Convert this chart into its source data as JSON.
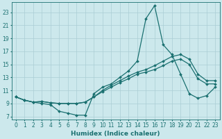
{
  "xlabel": "Humidex (Indice chaleur)",
  "background_color": "#cce8ec",
  "grid_color": "#aacdd4",
  "line_color": "#1a7070",
  "xlim": [
    -0.5,
    23.5
  ],
  "ylim": [
    6.5,
    24.5
  ],
  "yticks": [
    7,
    9,
    11,
    13,
    15,
    17,
    19,
    21,
    23
  ],
  "xticks": [
    0,
    1,
    2,
    3,
    4,
    5,
    6,
    7,
    8,
    9,
    10,
    11,
    12,
    13,
    14,
    15,
    16,
    17,
    18,
    19,
    20,
    21,
    22,
    23
  ],
  "line1_x": [
    0,
    1,
    2,
    3,
    4,
    5,
    6,
    7,
    8,
    9,
    10,
    11,
    12,
    13,
    14,
    15,
    16,
    17,
    18,
    19,
    20,
    21,
    22,
    23
  ],
  "line1_y": [
    10.0,
    9.5,
    9.2,
    9.0,
    8.8,
    7.8,
    7.5,
    7.2,
    7.2,
    10.5,
    11.5,
    12.0,
    13.0,
    14.0,
    15.5,
    22.0,
    24.0,
    18.0,
    16.5,
    13.5,
    10.5,
    9.8,
    10.2,
    11.5
  ],
  "line2_x": [
    0,
    1,
    2,
    3,
    4,
    5,
    6,
    7,
    8,
    9,
    10,
    11,
    12,
    13,
    14,
    15,
    16,
    17,
    18,
    19,
    20,
    21,
    22,
    23
  ],
  "line2_y": [
    10.0,
    9.5,
    9.2,
    9.3,
    9.1,
    9.0,
    9.0,
    9.0,
    9.2,
    10.0,
    11.0,
    11.8,
    12.5,
    13.2,
    13.8,
    14.2,
    14.8,
    15.5,
    16.2,
    16.5,
    15.8,
    13.5,
    12.5,
    12.5
  ],
  "line3_x": [
    0,
    1,
    2,
    3,
    4,
    5,
    6,
    7,
    8,
    9,
    10,
    11,
    12,
    13,
    14,
    15,
    16,
    17,
    18,
    19,
    20,
    21,
    22,
    23
  ],
  "line3_y": [
    10.0,
    9.5,
    9.2,
    9.3,
    9.1,
    9.0,
    9.0,
    9.0,
    9.2,
    10.0,
    10.8,
    11.5,
    12.2,
    12.8,
    13.5,
    13.8,
    14.2,
    14.8,
    15.5,
    15.8,
    15.0,
    12.8,
    12.0,
    12.0
  ],
  "marker_size": 2,
  "line_width": 0.9,
  "font_size_label": 6.5,
  "font_size_tick": 5.5
}
